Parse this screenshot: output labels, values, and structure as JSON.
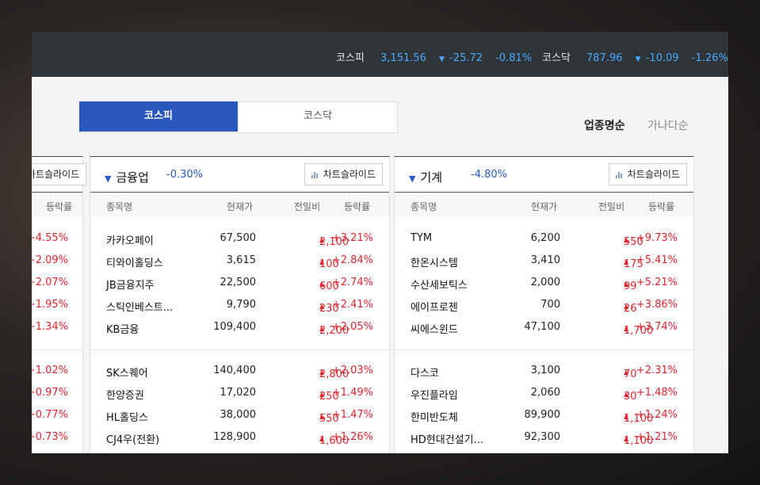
{
  "ticker": {
    "kospi": {
      "name": "코스피",
      "value": "3,151.56",
      "change": "-25.72",
      "rate": "-0.81%"
    },
    "kosdaq": {
      "name": "코스닥",
      "value": "787.96",
      "change": "-10.09",
      "rate": "-1.26%"
    }
  },
  "tabs": [
    {
      "label": "코스피"
    },
    {
      "label": "코스닥"
    }
  ],
  "sort": {
    "by_name": "업종명순",
    "by_alpha": "가나다순"
  },
  "colors": {
    "accent": "#2a58bd",
    "up": "#e0242d",
    "down": "#4aa8ff"
  },
  "left_card": {
    "chart_label": "차트슬라이드",
    "rate_header": "등락률",
    "rates": [
      "+4.55%",
      "+2.09%",
      "+2.07%",
      "+1.95%",
      "+1.34%",
      "+1.02%",
      "+0.97%",
      "+0.77%",
      "+0.73%"
    ]
  },
  "columns": {
    "name": "종목명",
    "price": "현재가",
    "change": "전일비",
    "rate": "등락률"
  },
  "cards": [
    {
      "title": "금융업",
      "pct": "-0.30%",
      "chart_label": "차트슬라이드",
      "rows": [
        {
          "name": "카카오페이",
          "price": "67,500",
          "change": "2,100",
          "rate": "+3.21%"
        },
        {
          "name": "티와이홀딩스",
          "price": "3,615",
          "change": "100",
          "rate": "+2.84%"
        },
        {
          "name": "JB금융지주",
          "price": "22,500",
          "change": "600",
          "rate": "+2.74%"
        },
        {
          "name": "스틱인베스트...",
          "price": "9,790",
          "change": "230",
          "rate": "+2.41%"
        },
        {
          "name": "KB금융",
          "price": "109,400",
          "change": "2,200",
          "rate": "+2.05%"
        },
        {
          "name": "SK스퀘어",
          "price": "140,400",
          "change": "2,800",
          "rate": "+2.03%"
        },
        {
          "name": "한양증권",
          "price": "17,020",
          "change": "250",
          "rate": "+1.49%"
        },
        {
          "name": "HL홀딩스",
          "price": "38,000",
          "change": "550",
          "rate": "+1.47%"
        },
        {
          "name": "CJ4우(전환)",
          "price": "128,900",
          "change": "1,600",
          "rate": "+1.26%"
        }
      ]
    },
    {
      "title": "기계",
      "pct": "-4.80%",
      "chart_label": "차트슬라이드",
      "rows": [
        {
          "name": "TYM",
          "price": "6,200",
          "change": "550",
          "rate": "+9.73%"
        },
        {
          "name": "한온시스템",
          "price": "3,410",
          "change": "175",
          "rate": "+5.41%"
        },
        {
          "name": "수산세보틱스",
          "price": "2,000",
          "change": "99",
          "rate": "+5.21%"
        },
        {
          "name": "에이프로젠",
          "price": "700",
          "change": "26",
          "rate": "+3.86%"
        },
        {
          "name": "씨에스윈드",
          "price": "47,100",
          "change": "1,700",
          "rate": "+3.74%"
        },
        {
          "name": "다스코",
          "price": "3,100",
          "change": "70",
          "rate": "+2.31%"
        },
        {
          "name": "우진플라임",
          "price": "2,060",
          "change": "30",
          "rate": "+1.48%"
        },
        {
          "name": "한미반도체",
          "price": "89,900",
          "change": "1,100",
          "rate": "+1.24%"
        },
        {
          "name": "HD현대건설기...",
          "price": "92,300",
          "change": "1,100",
          "rate": "+1.21%"
        }
      ]
    }
  ]
}
